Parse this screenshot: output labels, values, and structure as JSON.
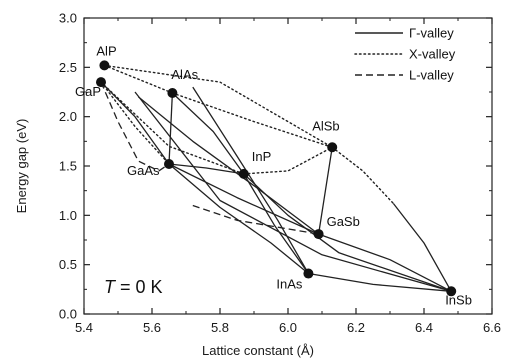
{
  "chart_data": {
    "type": "scatter",
    "xlabel": "Lattice constant (Å)",
    "ylabel": "Energy gap (eV)",
    "xlim": [
      5.4,
      6.6
    ],
    "ylim": [
      0.0,
      3.0
    ],
    "xticks": [
      "5.4",
      "5.6",
      "5.8",
      "6.0",
      "6.2",
      "6.4",
      "6.6"
    ],
    "yticks": [
      "0.0",
      "0.5",
      "1.0",
      "1.5",
      "2.0",
      "2.5",
      "3.0"
    ],
    "grid": false,
    "legend_position": "top-right",
    "annotation": {
      "T_symbol": "T",
      "rest": " =  0 K"
    },
    "points": [
      {
        "label": "AlP",
        "x": 5.46,
        "y": 2.52
      },
      {
        "label": "GaP",
        "x": 5.45,
        "y": 2.35
      },
      {
        "label": "AlAs",
        "x": 5.66,
        "y": 2.24
      },
      {
        "label": "GaAs",
        "x": 5.65,
        "y": 1.52
      },
      {
        "label": "InP",
        "x": 5.87,
        "y": 1.42
      },
      {
        "label": "AlSb",
        "x": 6.13,
        "y": 1.69
      },
      {
        "label": "GaSb",
        "x": 6.09,
        "y": 0.81
      },
      {
        "label": "InAs",
        "x": 6.06,
        "y": 0.41
      },
      {
        "label": "InSb",
        "x": 6.48,
        "y": 0.23
      }
    ],
    "series": [
      {
        "name": "Γ-valley",
        "style": "solid"
      },
      {
        "name": "X-valley",
        "style": "dotted"
      },
      {
        "name": "L-valley",
        "style": "dashed"
      }
    ],
    "curves": [
      {
        "style": "solid",
        "points": [
          [
            5.45,
            2.35
          ],
          [
            5.55,
            2.0
          ],
          [
            5.65,
            1.52
          ]
        ]
      },
      {
        "style": "solid",
        "points": [
          [
            5.65,
            1.52
          ],
          [
            5.66,
            2.24
          ]
        ]
      },
      {
        "style": "solid",
        "points": [
          [
            5.66,
            2.24
          ],
          [
            5.78,
            1.85
          ],
          [
            5.87,
            1.42
          ]
        ]
      },
      {
        "style": "solid",
        "points": [
          [
            5.65,
            1.52
          ],
          [
            5.76,
            1.48
          ],
          [
            5.87,
            1.42
          ]
        ]
      },
      {
        "style": "solid",
        "points": [
          [
            5.65,
            1.52
          ],
          [
            5.8,
            1.08
          ],
          [
            5.95,
            0.72
          ],
          [
            6.06,
            0.41
          ]
        ]
      },
      {
        "style": "solid",
        "points": [
          [
            5.87,
            1.42
          ],
          [
            5.96,
            0.9
          ],
          [
            6.06,
            0.41
          ]
        ]
      },
      {
        "style": "solid",
        "points": [
          [
            5.72,
            2.3
          ],
          [
            5.85,
            1.6
          ],
          [
            5.97,
            0.95
          ],
          [
            6.06,
            0.41
          ]
        ]
      },
      {
        "style": "solid",
        "points": [
          [
            5.65,
            1.52
          ],
          [
            5.85,
            1.18
          ],
          [
            6.09,
            0.81
          ]
        ]
      },
      {
        "style": "solid",
        "points": [
          [
            5.56,
            2.2
          ],
          [
            5.72,
            1.75
          ],
          [
            5.9,
            1.3
          ],
          [
            6.09,
            0.81
          ]
        ]
      },
      {
        "style": "solid",
        "points": [
          [
            6.13,
            1.69
          ],
          [
            6.11,
            1.25
          ],
          [
            6.09,
            0.81
          ]
        ]
      },
      {
        "style": "solid",
        "points": [
          [
            6.06,
            0.41
          ],
          [
            6.25,
            0.3
          ],
          [
            6.48,
            0.23
          ]
        ]
      },
      {
        "style": "solid",
        "points": [
          [
            6.09,
            0.81
          ],
          [
            6.3,
            0.55
          ],
          [
            6.48,
            0.23
          ]
        ]
      },
      {
        "style": "solid",
        "points": [
          [
            5.55,
            2.25
          ],
          [
            5.8,
            1.15
          ],
          [
            6.1,
            0.6
          ],
          [
            6.48,
            0.23
          ]
        ]
      },
      {
        "style": "solid",
        "points": [
          [
            5.87,
            1.42
          ],
          [
            6.0,
            1.0
          ],
          [
            6.15,
            0.62
          ],
          [
            6.48,
            0.23
          ]
        ]
      },
      {
        "style": "solid",
        "points": [
          [
            6.31,
            1.12
          ],
          [
            6.4,
            0.72
          ],
          [
            6.48,
            0.23
          ]
        ]
      },
      {
        "style": "dotted",
        "points": [
          [
            5.46,
            2.52
          ],
          [
            5.66,
            2.24
          ]
        ]
      },
      {
        "style": "dotted",
        "points": [
          [
            5.46,
            2.52
          ],
          [
            5.8,
            2.35
          ],
          [
            6.13,
            1.69
          ]
        ]
      },
      {
        "style": "dotted",
        "points": [
          [
            5.66,
            2.24
          ],
          [
            5.9,
            1.95
          ],
          [
            6.13,
            1.69
          ]
        ]
      },
      {
        "style": "dotted",
        "points": [
          [
            5.45,
            2.35
          ],
          [
            5.55,
            1.9
          ],
          [
            5.65,
            1.52
          ]
        ]
      },
      {
        "style": "dotted",
        "points": [
          [
            5.45,
            2.35
          ],
          [
            5.65,
            1.7
          ],
          [
            5.87,
            1.42
          ]
        ]
      },
      {
        "style": "dotted",
        "points": [
          [
            5.87,
            1.42
          ],
          [
            6.0,
            1.45
          ],
          [
            6.13,
            1.69
          ]
        ]
      },
      {
        "style": "dotted",
        "points": [
          [
            6.13,
            1.69
          ],
          [
            6.22,
            1.45
          ],
          [
            6.31,
            1.12
          ]
        ]
      },
      {
        "style": "dashed",
        "points": [
          [
            5.45,
            2.35
          ],
          [
            5.5,
            1.95
          ],
          [
            5.56,
            1.55
          ],
          [
            5.62,
            1.45
          ],
          [
            5.65,
            1.52
          ]
        ]
      },
      {
        "style": "dashed",
        "points": [
          [
            5.72,
            1.1
          ],
          [
            5.85,
            0.95
          ],
          [
            6.09,
            0.81
          ]
        ]
      }
    ]
  }
}
